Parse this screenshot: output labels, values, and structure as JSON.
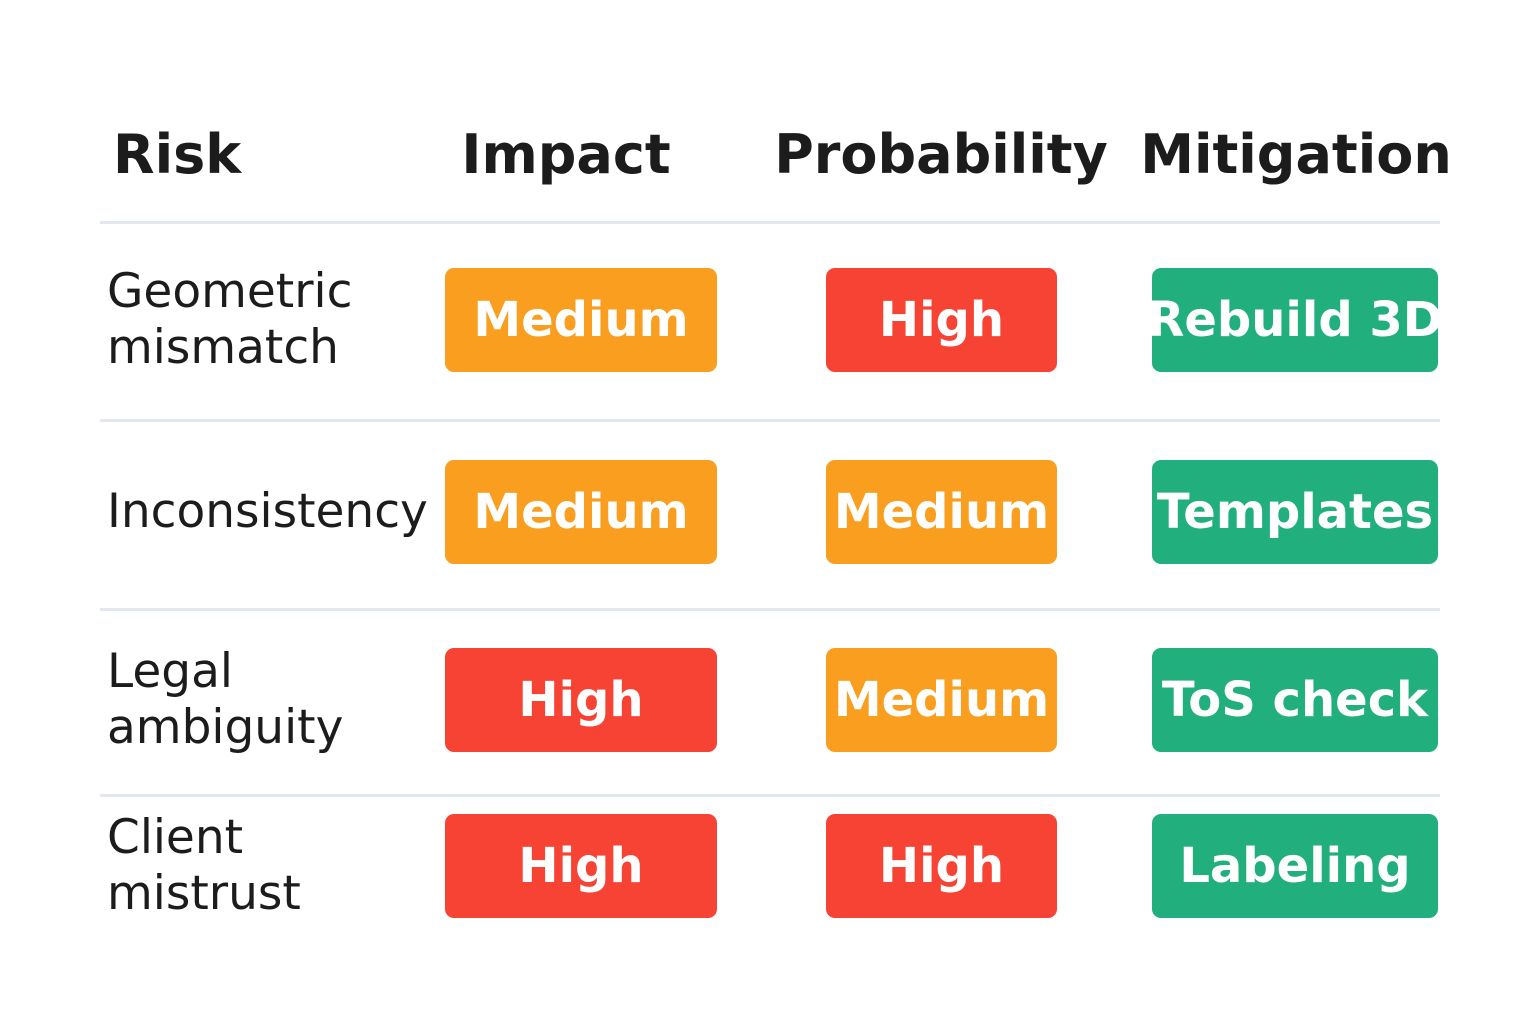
{
  "table": {
    "header": [
      "Risk",
      "Impact",
      "Probability",
      "Mitigation"
    ],
    "rows": [
      [
        "Geometric mismatch",
        {
          "label": "Medium",
          "color": "#f99e1e"
        },
        {
          "label": "High",
          "color": "#f64334"
        },
        {
          "label": "Rebuild 3D",
          "color": "#22af7e"
        }
      ],
      [
        "Inconsistency",
        {
          "label": "Medium",
          "color": "#f99e1e"
        },
        {
          "label": "Medium",
          "color": "#f99e1e"
        },
        {
          "label": "Templates",
          "color": "#22af7e"
        }
      ],
      [
        "Legal ambiguity",
        {
          "label": "High",
          "color": "#f64334"
        },
        {
          "label": "Medium",
          "color": "#f99e1e"
        },
        {
          "label": "ToS check",
          "color": "#22af7e"
        }
      ],
      [
        "Client mistrust",
        {
          "label": "High",
          "color": "#f64334"
        },
        {
          "label": "High",
          "color": "#f64334"
        },
        {
          "label": "Labeling",
          "color": "#22af7e"
        }
      ]
    ]
  }
}
